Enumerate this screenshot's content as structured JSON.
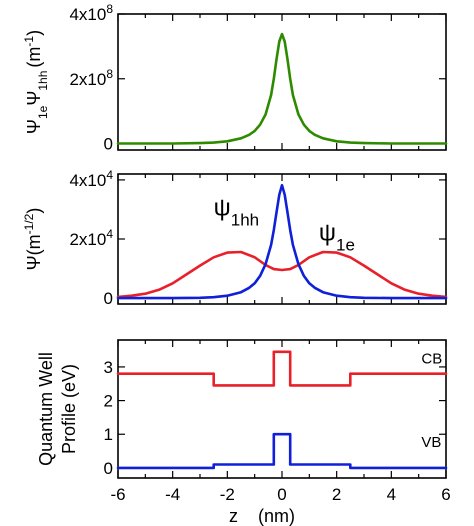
{
  "colors": {
    "green": "#2e8b00",
    "red": "#e8202a",
    "blue": "#1020d8"
  },
  "chart_data": [
    {
      "type": "line",
      "panel": "top",
      "ylabel": {
        "main": "Ψ",
        "sub1": "1e",
        "mid": "Ψ",
        "sub2": "1hh",
        "unit": "(m",
        "unit_sup": "-1",
        "unit_end": ")"
      },
      "xlim": [
        -6,
        6
      ],
      "ylim": [
        -20000000.0,
        400000000.0
      ],
      "yticks": [
        {
          "value": 0,
          "base": "0",
          "exp": ""
        },
        {
          "value": 200000000.0,
          "base": "2x10",
          "exp": "8"
        },
        {
          "value": 400000000.0,
          "base": "4x10",
          "exp": "8"
        }
      ],
      "series": [
        {
          "color": "#2e8b00",
          "x": [
            -6,
            -5,
            -4,
            -3,
            -2.5,
            -2,
            -1.5,
            -1.2,
            -1,
            -0.8,
            -0.6,
            -0.4,
            -0.3,
            -0.2,
            -0.1,
            0,
            0.1,
            0.2,
            0.3,
            0.4,
            0.6,
            0.8,
            1,
            1.2,
            1.5,
            2,
            2.5,
            3,
            4,
            5,
            6
          ],
          "y": [
            0,
            0,
            200000.0,
            1200000.0,
            3000000.0,
            7000000.0,
            16000000.0,
            27000000.0,
            39000000.0,
            58000000.0,
            90000000.0,
            150000000.0,
            200000000.0,
            260000000.0,
            315000000.0,
            338000000.0,
            315000000.0,
            260000000.0,
            200000000.0,
            150000000.0,
            90000000.0,
            58000000.0,
            39000000.0,
            27000000.0,
            16000000.0,
            7000000.0,
            3000000.0,
            1200000.0,
            200000.0,
            0,
            0
          ]
        }
      ]
    },
    {
      "type": "line",
      "panel": "middle",
      "ylabel": {
        "main": "Ψ",
        "unit": "(m",
        "unit_sup": "-1/2",
        "unit_end": ")"
      },
      "xlim": [
        -6,
        6
      ],
      "ylim": [
        -2000.0,
        42000.0
      ],
      "yticks": [
        {
          "value": 0,
          "base": "0",
          "exp": ""
        },
        {
          "value": 20000.0,
          "base": "2x10",
          "exp": "4"
        },
        {
          "value": 40000.0,
          "base": "4x10",
          "exp": "4"
        }
      ],
      "annotations": [
        {
          "text": "ψ",
          "sub": "1hh",
          "x": -2.5,
          "y": 28000.0
        },
        {
          "text": "ψ",
          "sub": "1e",
          "x": 1.35,
          "y": 19500.0
        }
      ],
      "series": [
        {
          "color": "#e8202a",
          "x": [
            -6,
            -5.5,
            -5,
            -4.5,
            -4,
            -3.5,
            -3,
            -2.5,
            -2,
            -1.5,
            -1,
            -0.6,
            -0.3,
            0,
            0.3,
            0.6,
            1,
            1.5,
            2,
            2.5,
            3,
            3.5,
            4,
            4.5,
            5,
            5.5,
            6
          ],
          "y": [
            400.0,
            800.0,
            1500.0,
            2800.0,
            5000.0,
            8000.0,
            11000.0,
            13800.0,
            15400.0,
            15600.0,
            13800.0,
            11200.0,
            9800.0,
            9500.0,
            9800.0,
            11200.0,
            13800.0,
            15600.0,
            15400.0,
            13800.0,
            11000.0,
            8000.0,
            5000.0,
            2800.0,
            1500.0,
            800.0,
            400.0
          ]
        },
        {
          "color": "#1020d8",
          "x": [
            -6,
            -4,
            -3,
            -2.5,
            -2,
            -1.5,
            -1.2,
            -1,
            -0.8,
            -0.6,
            -0.4,
            -0.3,
            -0.2,
            -0.1,
            0,
            0.1,
            0.2,
            0.3,
            0.4,
            0.6,
            0.8,
            1,
            1.2,
            1.5,
            2,
            2.5,
            3,
            4,
            6
          ],
          "y": [
            0,
            0,
            100.0,
            300.0,
            800.0,
            2000.0,
            3500.0,
            5000.0,
            7500.0,
            11500.0,
            18000.0,
            23000.0,
            29000.0,
            35000.0,
            38200.0,
            35000.0,
            29000.0,
            23000.0,
            18000.0,
            11500.0,
            7500.0,
            5000.0,
            3500.0,
            2000.0,
            800.0,
            300.0,
            100.0,
            0,
            0
          ]
        }
      ]
    },
    {
      "type": "line",
      "panel": "bottom",
      "ylabel": {
        "line1": "Quantum Well",
        "line2": "Profile (eV)"
      },
      "xlim": [
        -6,
        6
      ],
      "ylim": [
        -0.3,
        3.8
      ],
      "xlabel": "z    (nm)",
      "yticks": [
        {
          "value": 0,
          "base": "0",
          "exp": ""
        },
        {
          "value": 1,
          "base": "1",
          "exp": ""
        },
        {
          "value": 2,
          "base": "2",
          "exp": ""
        },
        {
          "value": 3,
          "base": "3",
          "exp": ""
        }
      ],
      "xticks": [
        -6,
        -4,
        -2,
        0,
        2,
        4,
        6
      ],
      "labels": [
        {
          "text": "CB",
          "x": 5.1,
          "y": 3.1
        },
        {
          "text": "VB",
          "x": 5.1,
          "y": 0.62
        }
      ],
      "series": [
        {
          "color": "#e8202a",
          "x": [
            -6,
            -2.5,
            -2.5,
            -0.3,
            -0.3,
            0.3,
            0.3,
            2.5,
            2.5,
            6
          ],
          "y": [
            2.8,
            2.8,
            2.45,
            2.45,
            3.45,
            3.45,
            2.45,
            2.45,
            2.8,
            2.8
          ]
        },
        {
          "color": "#1020d8",
          "x": [
            -6,
            -2.5,
            -2.5,
            -0.3,
            -0.3,
            0.3,
            0.3,
            2.5,
            2.5,
            6
          ],
          "y": [
            0,
            0,
            0.1,
            0.1,
            1.0,
            1.0,
            0.1,
            0.1,
            0,
            0
          ]
        }
      ]
    }
  ]
}
